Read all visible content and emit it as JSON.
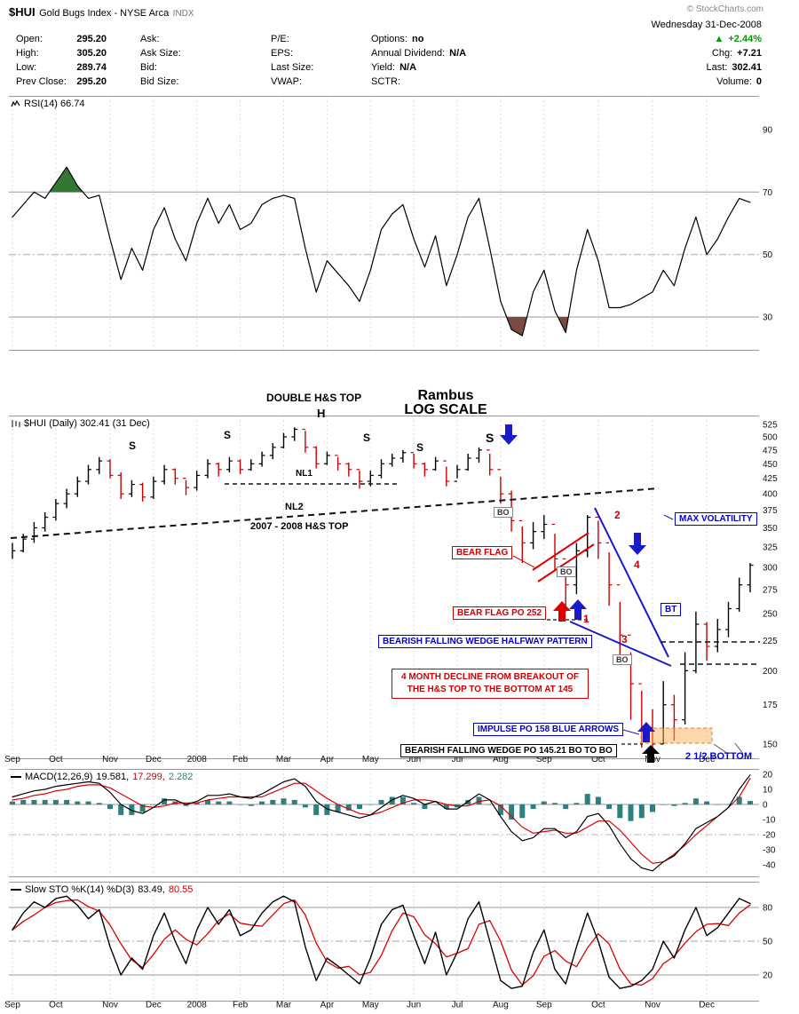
{
  "header": {
    "symbol": "$HUI",
    "name": "Gold Bugs Index - NYSE Arca",
    "suffix": "INDX",
    "copyright": "© StockCharts.com",
    "date": "Wednesday 31-Dec-2008",
    "quote": {
      "col1": [
        {
          "label": "Open:",
          "value": "295.20"
        },
        {
          "label": "High:",
          "value": "305.20"
        },
        {
          "label": "Low:",
          "value": "289.74"
        },
        {
          "label": "Prev Close:",
          "value": "295.20"
        }
      ],
      "col2": [
        {
          "label": "Ask:",
          "value": ""
        },
        {
          "label": "Ask Size:",
          "value": ""
        },
        {
          "label": "Bid:",
          "value": ""
        },
        {
          "label": "Bid Size:",
          "value": ""
        }
      ],
      "col3": [
        {
          "label": "P/E:",
          "value": ""
        },
        {
          "label": "EPS:",
          "value": ""
        },
        {
          "label": "Last Size:",
          "value": ""
        },
        {
          "label": "VWAP:",
          "value": ""
        }
      ],
      "col4": [
        {
          "label": "Options:",
          "value": "no"
        },
        {
          "label": "Annual Dividend:",
          "value": "N/A"
        },
        {
          "label": "Yield:",
          "value": "N/A"
        },
        {
          "label": "SCTR:",
          "value": ""
        }
      ]
    },
    "summary": {
      "pct": "+2.44%",
      "rows": [
        {
          "label": "Chg:",
          "value": "+7.21"
        },
        {
          "label": "Last:",
          "value": "302.41"
        },
        {
          "label": "Volume:",
          "value": "0"
        }
      ]
    }
  },
  "panels": {
    "rsi": {
      "label": "RSI(14) 66.74"
    },
    "price": {
      "label": "$HUI (Daily) 302.41 (31 Dec)"
    },
    "macd": {
      "name": "MACD(12,26,9)",
      "v1": "19.581,",
      "v2": "17.299,",
      "v3": "2.282"
    },
    "sto": {
      "name": "Slow STO %K(14) %D(3)",
      "v1": "83.49,",
      "v2": "80.55"
    }
  },
  "ann": {
    "double_top": "DOUBLE H&S TOP",
    "rambus": "Rambus",
    "log_scale": "LOG SCALE",
    "s1": "S",
    "s2": "S",
    "h": "H",
    "s3": "S",
    "s4": "S",
    "s5": "S",
    "nl1": "NL1",
    "nl2": "NL2",
    "hs_top": "2007 - 2008 H&S TOP",
    "bear_flag": "BEAR FLAG",
    "bo": "BO",
    "n1": "1",
    "n2": "2",
    "n3": "3",
    "n4": "4",
    "max_vol": "MAX VOLATILITY",
    "bear_flag_po": "BEAR FLAG PO 252",
    "wedge_halfway": "BEARISH FALLING WEDGE HALFWAY PATTERN",
    "bt": "BT",
    "four_month_1": "4 MONTH DECLINE FROM BREAKOUT OF",
    "four_month_2": "THE H&S TOP TO THE BOTTOM AT 145",
    "impulse": "IMPULSE PO 158 BLUE ARROWS",
    "wedge_po": "BEARISH FALLING WEDGE PO 145.21 BO TO BO",
    "half_bottom": "2 1/2 BOTTOM"
  },
  "chart_data": {
    "type": "ohlc",
    "title": "$HUI Gold Bugs Index - NYSE Arca INDX (Daily)",
    "date": "31-Dec-2008",
    "last": 302.41,
    "x_axis": {
      "months": [
        "Sep",
        "Oct",
        "Nov",
        "Dec",
        "2008",
        "Feb",
        "Mar",
        "Apr",
        "May",
        "Jun",
        "Jul",
        "Aug",
        "Sep",
        "Oct",
        "Nov",
        "Dec"
      ],
      "month_week_index": [
        0,
        4,
        9,
        13,
        17,
        21,
        25,
        29,
        33,
        37,
        41,
        45,
        49,
        54,
        59,
        64
      ]
    },
    "price": {
      "scale": "log",
      "ylim": [
        150,
        525
      ],
      "ticks": [
        525,
        500,
        475,
        450,
        425,
        400,
        375,
        350,
        325,
        300,
        275,
        250,
        225,
        200,
        175,
        150
      ],
      "high": [
        330,
        342,
        358,
        372,
        392,
        408,
        428,
        448,
        462,
        458,
        435,
        422,
        418,
        428,
        448,
        442,
        422,
        438,
        458,
        452,
        462,
        458,
        458,
        472,
        488,
        508,
        519,
        512,
        482,
        472,
        462,
        452,
        438,
        438,
        458,
        468,
        475,
        468,
        452,
        462,
        445,
        448,
        468,
        480,
        468,
        428,
        405,
        352,
        358,
        368,
        342,
        300,
        330,
        368,
        360,
        318,
        262,
        215,
        185,
        172,
        192,
        182,
        215,
        252,
        242,
        245,
        262,
        288,
        305
      ],
      "low": [
        310,
        318,
        330,
        345,
        360,
        378,
        395,
        415,
        432,
        425,
        392,
        395,
        388,
        392,
        415,
        415,
        398,
        405,
        425,
        428,
        435,
        432,
        438,
        445,
        458,
        478,
        492,
        470,
        442,
        448,
        438,
        428,
        408,
        412,
        425,
        445,
        452,
        442,
        428,
        438,
        412,
        425,
        438,
        452,
        430,
        385,
        345,
        305,
        322,
        335,
        295,
        252,
        270,
        312,
        310,
        258,
        212,
        165,
        148,
        145,
        150,
        152,
        162,
        198,
        208,
        215,
        228,
        252,
        272
      ],
      "close": [
        320,
        335,
        350,
        365,
        385,
        400,
        420,
        440,
        455,
        430,
        400,
        415,
        395,
        420,
        440,
        425,
        410,
        430,
        450,
        440,
        455,
        440,
        450,
        465,
        480,
        500,
        515,
        480,
        450,
        465,
        450,
        440,
        420,
        430,
        450,
        460,
        470,
        450,
        440,
        455,
        420,
        440,
        460,
        475,
        440,
        400,
        360,
        330,
        345,
        355,
        310,
        280,
        320,
        365,
        330,
        280,
        230,
        190,
        160,
        150,
        175,
        165,
        200,
        240,
        220,
        235,
        255,
        280,
        302.4
      ]
    },
    "rsi": {
      "period": 14,
      "last": 66.74,
      "overbought": 70,
      "oversold": 30,
      "ticks": [
        90,
        70,
        50,
        30
      ],
      "values": [
        62,
        66,
        70,
        68,
        73,
        78,
        72,
        68,
        69,
        55,
        42,
        52,
        45,
        58,
        65,
        55,
        48,
        60,
        68,
        60,
        66,
        58,
        60,
        66,
        68,
        69,
        68,
        52,
        38,
        48,
        44,
        40,
        35,
        45,
        58,
        63,
        66,
        55,
        46,
        56,
        40,
        50,
        62,
        68,
        52,
        35,
        26,
        24,
        38,
        45,
        32,
        25,
        45,
        58,
        48,
        33,
        33,
        34,
        36,
        38,
        45,
        40,
        52,
        62,
        50,
        55,
        62,
        68,
        66.7
      ]
    },
    "macd": {
      "params": "12,26,9",
      "last": [
        19.581,
        17.299,
        2.282
      ],
      "ticks": [
        20,
        10,
        0,
        -10,
        -20,
        -30,
        -40
      ],
      "macd": [
        5,
        7,
        9,
        10,
        12,
        13,
        14,
        15,
        14,
        8,
        0,
        -4,
        -6,
        -2,
        3,
        3,
        0,
        2,
        6,
        6,
        7,
        5,
        4,
        7,
        11,
        15,
        17,
        12,
        2,
        -3,
        -5,
        -7,
        -9,
        -7,
        -2,
        3,
        6,
        4,
        0,
        2,
        -3,
        -3,
        2,
        7,
        3,
        -8,
        -18,
        -24,
        -22,
        -16,
        -16,
        -22,
        -18,
        -8,
        -6,
        -14,
        -26,
        -36,
        -42,
        -44,
        -38,
        -34,
        -26,
        -16,
        -12,
        -8,
        -2,
        10,
        19.6
      ],
      "signal": [
        3,
        4,
        6,
        7,
        9,
        10,
        12,
        13,
        13,
        11,
        7,
        3,
        -1,
        -2,
        -1,
        1,
        1,
        1,
        3,
        4,
        5,
        5,
        5,
        5,
        8,
        11,
        14,
        14,
        9,
        4,
        0,
        -3,
        -6,
        -7,
        -5,
        -2,
        1,
        3,
        3,
        2,
        0,
        -1,
        -1,
        2,
        3,
        -1,
        -8,
        -15,
        -19,
        -18,
        -17,
        -19,
        -19,
        -15,
        -11,
        -11,
        -17,
        -25,
        -33,
        -39,
        -38,
        -33,
        -27,
        -20,
        -14,
        -8,
        -2,
        5,
        17.3
      ]
    },
    "sto": {
      "params": "%K(14) %D(3)",
      "last": [
        83.49,
        80.55
      ],
      "ticks": [
        80,
        50,
        20
      ],
      "k": [
        60,
        75,
        85,
        80,
        88,
        90,
        82,
        70,
        78,
        45,
        20,
        35,
        25,
        55,
        75,
        50,
        30,
        60,
        80,
        65,
        78,
        55,
        60,
        75,
        85,
        90,
        85,
        45,
        15,
        35,
        28,
        20,
        12,
        35,
        65,
        78,
        82,
        55,
        30,
        58,
        20,
        40,
        70,
        85,
        50,
        15,
        8,
        10,
        40,
        60,
        25,
        12,
        45,
        75,
        50,
        18,
        8,
        10,
        15,
        25,
        50,
        35,
        60,
        80,
        55,
        62,
        75,
        88,
        83.5
      ]
    }
  }
}
